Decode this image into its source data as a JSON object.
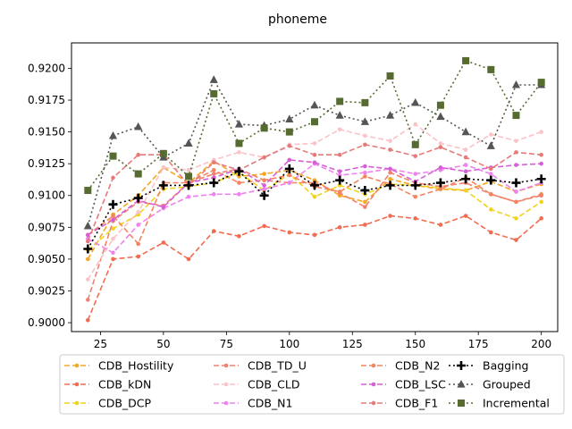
{
  "chart_data": {
    "type": "line",
    "title": "phoneme",
    "xlabel": "",
    "ylabel": "",
    "x": [
      20,
      30,
      40,
      50,
      60,
      70,
      80,
      90,
      100,
      110,
      120,
      130,
      140,
      150,
      160,
      170,
      180,
      190,
      200
    ],
    "xlim": [
      13.5,
      206.5
    ],
    "ylim": [
      0.8993,
      0.922
    ],
    "xticks": [
      25,
      50,
      75,
      100,
      125,
      150,
      175,
      200
    ],
    "yticks": [
      0.9,
      0.9025,
      0.905,
      0.9075,
      0.91,
      0.9125,
      0.915,
      0.9175,
      0.92
    ],
    "ytick_labels": [
      "0.9000",
      "0.9025",
      "0.9050",
      "0.9075",
      "0.9100",
      "0.9125",
      "0.9150",
      "0.9175",
      "0.9200"
    ],
    "grid": false,
    "legend_position": "bottom, below plot, 4 columns",
    "series": [
      {
        "name": "CDB_Hostility",
        "color": "#f5a623",
        "linestyle": "dashed",
        "marker": "circle",
        "values": [
          0.905,
          0.9085,
          0.91,
          0.9122,
          0.911,
          0.9127,
          0.9115,
          0.9117,
          0.912,
          0.9112,
          0.91,
          0.9095,
          0.9113,
          0.9108,
          0.9105,
          0.9104,
          0.9111,
          0.9103,
          0.9109
        ]
      },
      {
        "name": "CDB_kDN",
        "color": "#f26b4f",
        "linestyle": "dashed",
        "marker": "circle",
        "values": [
          0.9002,
          0.905,
          0.9052,
          0.9063,
          0.905,
          0.9072,
          0.9068,
          0.9076,
          0.9071,
          0.9069,
          0.9075,
          0.9077,
          0.9084,
          0.9082,
          0.9077,
          0.9084,
          0.9071,
          0.9065,
          0.9082
        ]
      },
      {
        "name": "CDB_DCP",
        "color": "#f0d31b",
        "linestyle": "dashed",
        "marker": "circle",
        "values": [
          0.9057,
          0.9074,
          0.9085,
          0.9105,
          0.9107,
          0.911,
          0.9118,
          0.9104,
          0.9117,
          0.9099,
          0.9108,
          0.9101,
          0.9109,
          0.9108,
          0.9106,
          0.9104,
          0.9089,
          0.9082,
          0.9095
        ]
      },
      {
        "name": "CDB_TD_U",
        "color": "#f08070",
        "linestyle": "dashed",
        "marker": "circle",
        "values": [
          0.9018,
          0.908,
          0.9095,
          0.9092,
          0.911,
          0.9117,
          0.9121,
          0.9112,
          0.911,
          0.911,
          0.9102,
          0.9091,
          0.9118,
          0.911,
          0.9107,
          0.911,
          0.9101,
          0.9095,
          0.91
        ]
      },
      {
        "name": "CDB_CLD",
        "color": "#f9c3c8",
        "linestyle": "dashed",
        "marker": "circle",
        "values": [
          0.9034,
          0.9066,
          0.9087,
          0.9122,
          0.912,
          0.9128,
          0.9134,
          0.913,
          0.914,
          0.9141,
          0.9152,
          0.9147,
          0.9143,
          0.9156,
          0.9141,
          0.9136,
          0.9148,
          0.9143,
          0.915
        ]
      },
      {
        "name": "CDB_N1",
        "color": "#ee82ee",
        "linestyle": "dashed",
        "marker": "circle",
        "values": [
          0.9066,
          0.9055,
          0.9077,
          0.909,
          0.9099,
          0.9101,
          0.9101,
          0.9105,
          0.911,
          0.9125,
          0.9116,
          0.9118,
          0.9121,
          0.9117,
          0.912,
          0.9124,
          0.9117,
          0.9103,
          0.911
        ]
      },
      {
        "name": "CDB_N2",
        "color": "#f4845f",
        "linestyle": "dashed",
        "marker": "circle",
        "values": [
          0.9069,
          0.9084,
          0.9062,
          0.911,
          0.911,
          0.912,
          0.911,
          0.9112,
          0.9116,
          0.9107,
          0.9103,
          0.9115,
          0.9109,
          0.9099,
          0.9105,
          0.9114,
          0.9101,
          0.9095,
          0.9101
        ]
      },
      {
        "name": "CDB_LSC",
        "color": "#d65fd6",
        "linestyle": "dashed",
        "marker": "circle",
        "values": [
          0.9069,
          0.9081,
          0.9096,
          0.9091,
          0.911,
          0.9114,
          0.9121,
          0.9108,
          0.9128,
          0.9126,
          0.9119,
          0.9123,
          0.9121,
          0.9111,
          0.9122,
          0.9119,
          0.9122,
          0.9124,
          0.9125
        ]
      },
      {
        "name": "CDB_F1",
        "color": "#e87979",
        "linestyle": "dashed",
        "marker": "circle",
        "values": [
          0.9064,
          0.9114,
          0.9132,
          0.9132,
          0.9108,
          0.9126,
          0.912,
          0.913,
          0.9139,
          0.9132,
          0.9132,
          0.914,
          0.9136,
          0.9131,
          0.9138,
          0.913,
          0.9121,
          0.9134,
          0.9132
        ]
      },
      {
        "name": "Bagging",
        "color": "#000000",
        "linestyle": "dotted",
        "marker": "plus",
        "values": [
          0.9058,
          0.9093,
          0.9098,
          0.9108,
          0.9108,
          0.911,
          0.9119,
          0.91,
          0.9121,
          0.9108,
          0.9112,
          0.9104,
          0.9108,
          0.9108,
          0.911,
          0.9113,
          0.9112,
          0.911,
          0.9113
        ]
      },
      {
        "name": "Grouped",
        "color": "#555555",
        "linestyle": "dotted",
        "marker": "triangle",
        "values": [
          0.9076,
          0.9147,
          0.9154,
          0.913,
          0.9141,
          0.9191,
          0.9156,
          0.9155,
          0.916,
          0.9171,
          0.9163,
          0.9158,
          0.9163,
          0.9173,
          0.9162,
          0.915,
          0.9139,
          0.9187,
          0.9187
        ]
      },
      {
        "name": "Incremental",
        "color": "#556b2f",
        "linestyle": "dotted",
        "marker": "square",
        "values": [
          0.9104,
          0.9131,
          0.9117,
          0.9133,
          0.9115,
          0.918,
          0.9141,
          0.9153,
          0.915,
          0.9158,
          0.9174,
          0.9173,
          0.9194,
          0.914,
          0.9171,
          0.9206,
          0.9199,
          0.9163,
          0.9189
        ]
      }
    ]
  }
}
